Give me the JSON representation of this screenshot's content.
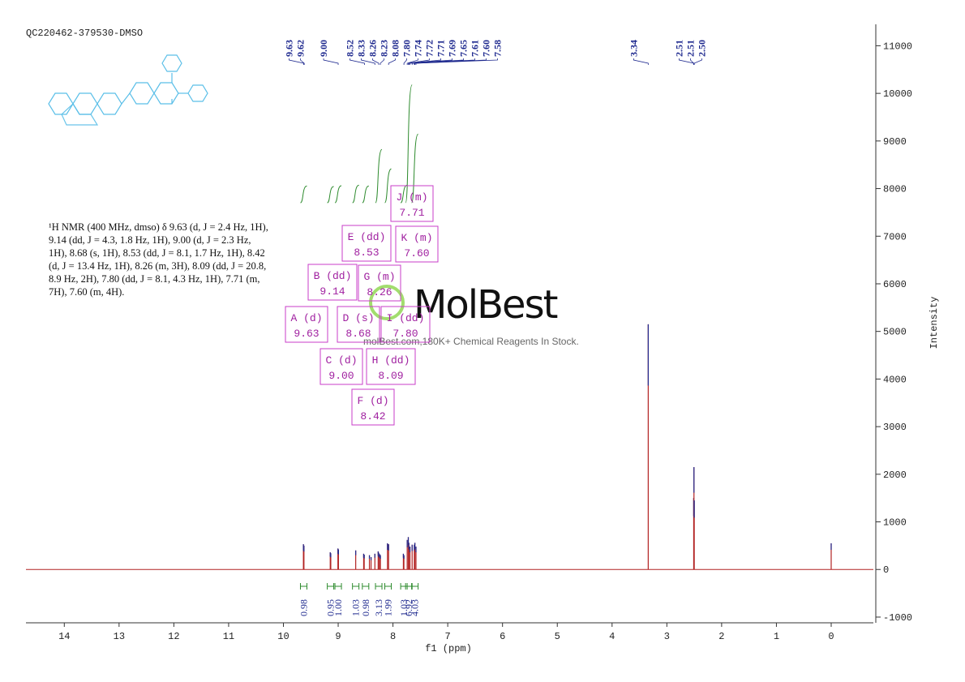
{
  "chart_data": {
    "type": "nmr",
    "title": "QC220462-379530-DMSO",
    "description": "¹H NMR (400 MHz, dmso) δ 9.63 (d, J = 2.4 Hz, 1H), 9.14 (dd, J = 4.3, 1.8 Hz, 1H), 9.00 (d, J = 2.3 Hz, 1H), 8.68 (s, 1H), 8.53 (dd, J = 8.1, 1.7 Hz, 1H), 8.42 (d, J = 13.4 Hz, 1H), 8.26 (m, 3H), 8.09 (dd, J = 20.8, 8.9 Hz, 2H), 7.80 (dd, J = 8.1, 4.3 Hz, 1H), 7.71 (m, 7H), 7.60 (m, 4H).",
    "x_label": "f1 (ppm)",
    "y_label": "Intensity",
    "watermark": "MolBest",
    "watermark_sub": "molBest.com,180K+ Chemical Reagents In Stock.",
    "x": [
      9.635,
      9.625,
      9.145,
      9.135,
      9.005,
      8.995,
      8.68,
      8.535,
      8.525,
      8.43,
      8.4,
      8.33,
      8.27,
      8.26,
      8.24,
      8.23,
      8.1,
      8.08,
      7.81,
      7.8,
      7.74,
      7.72,
      7.71,
      7.69,
      7.65,
      7.61,
      7.6,
      7.58,
      3.34,
      2.51,
      2.505,
      2.5,
      0
    ],
    "series": [
      {
        "name": "spectrum",
        "color": "#b22222",
        "values": [
          530,
          500,
          360,
          340,
          440,
          420,
          400,
          330,
          310,
          300,
          260,
          330,
          380,
          350,
          320,
          300,
          550,
          530,
          330,
          300,
          620,
          680,
          560,
          480,
          520,
          520,
          560,
          480,
          5150,
          1500,
          2150,
          1450,
          550
        ]
      }
    ],
    "xlim": [
      14.7,
      -0.77
    ],
    "ylim": [
      -1120,
      11450
    ],
    "xticks": [
      14,
      13,
      12,
      11,
      10,
      9,
      8,
      7,
      6,
      5,
      4,
      3,
      2,
      1,
      0
    ],
    "yticks": [
      -1000,
      0,
      1000,
      2000,
      3000,
      4000,
      5000,
      6000,
      7000,
      8000,
      9000,
      10000,
      11000
    ],
    "peak_labels": [
      "9.63",
      "9.62",
      "9.00",
      "8.52",
      "8.33",
      "8.26",
      "8.23",
      "8.08",
      "7.80",
      "7.74",
      "7.72",
      "7.71",
      "7.69",
      "7.65",
      "7.61",
      "7.60",
      "7.58",
      "3.34",
      "2.51",
      "2.51",
      "2.50"
    ],
    "integrals": {
      "color": "#2e8b2e",
      "x": [
        9.63,
        9.14,
        9.0,
        8.68,
        8.5,
        8.26,
        8.09,
        7.8,
        7.71,
        7.6
      ],
      "values": [
        0.98,
        0.95,
        1.0,
        1.03,
        0.98,
        3.13,
        1.99,
        1.03,
        6.92,
        4.03
      ],
      "value_labels": [
        "0.98",
        "0.95",
        "1.00",
        "1.03",
        "0.98",
        "3.13",
        "1.99",
        "1.03",
        "6.92",
        "4.03"
      ]
    },
    "multiplets": [
      {
        "label": "A (d)",
        "shift": "9.63"
      },
      {
        "label": "B (dd)",
        "shift": "9.14"
      },
      {
        "label": "C (d)",
        "shift": "9.00"
      },
      {
        "label": "D (s)",
        "shift": "8.68"
      },
      {
        "label": "E (dd)",
        "shift": "8.53"
      },
      {
        "label": "F (d)",
        "shift": "8.42"
      },
      {
        "label": "G (m)",
        "shift": "8.26"
      },
      {
        "label": "H (dd)",
        "shift": "8.09"
      },
      {
        "label": "I (dd)",
        "shift": "7.80"
      },
      {
        "label": "J (m)",
        "shift": "7.71"
      },
      {
        "label": "K (m)",
        "shift": "7.60"
      }
    ]
  }
}
